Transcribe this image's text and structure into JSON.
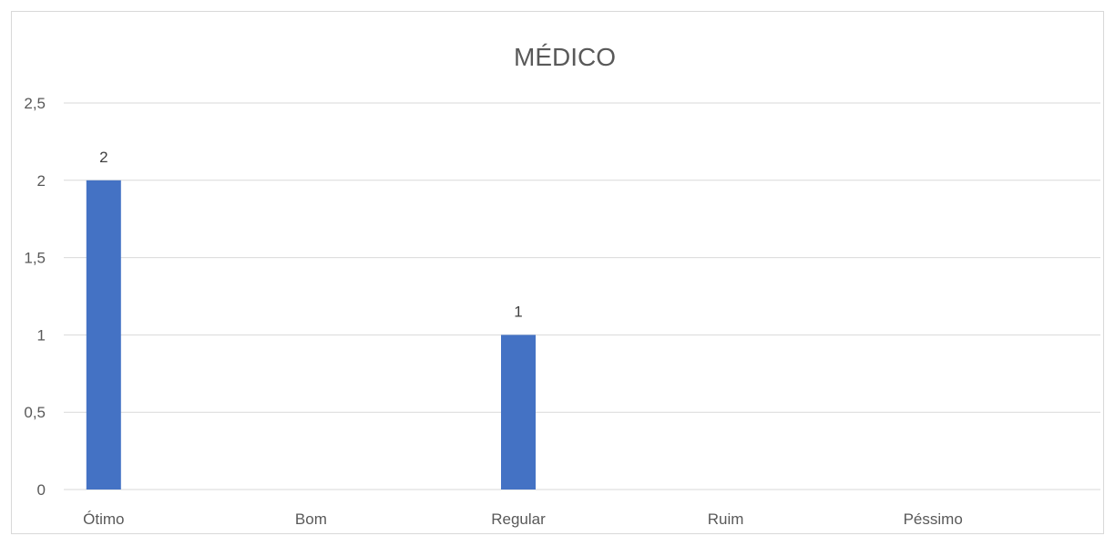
{
  "chart_data": {
    "type": "bar",
    "title": "MÉDICO",
    "categories": [
      "Ótimo",
      "Bom",
      "Regular",
      "Ruim",
      "Péssimo"
    ],
    "values": [
      2,
      0,
      1,
      0,
      0
    ],
    "data_labels": [
      "2",
      "",
      "1",
      "",
      ""
    ],
    "y_ticks": [
      "0",
      "0,5",
      "1",
      "1,5",
      "2",
      "2,5"
    ],
    "ylim": [
      0,
      2.5
    ],
    "grid": true,
    "legend": "none",
    "xlabel": "",
    "ylabel": "",
    "bar_color": "#4472c4"
  }
}
